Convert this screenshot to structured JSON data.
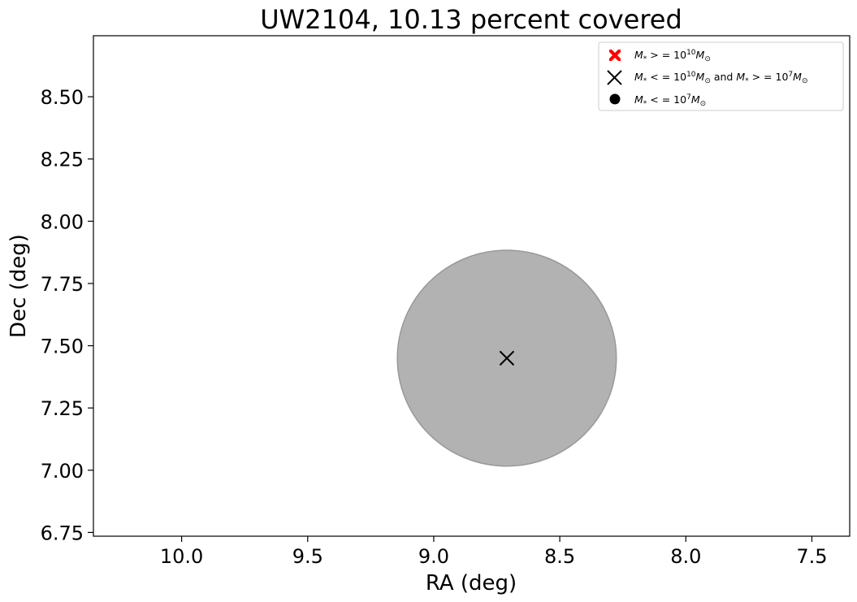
{
  "chart_data": {
    "type": "scatter",
    "title": "UW2104, 10.13 percent covered",
    "xlabel": "RA (deg)",
    "ylabel": "Dec (deg)",
    "xlim": [
      10.35,
      7.35
    ],
    "ylim": [
      6.735,
      8.745
    ],
    "x_inverted": true,
    "x_ticks": [
      10.0,
      9.5,
      9.0,
      8.5,
      8.0,
      7.5
    ],
    "x_tick_labels": [
      "10.0",
      "9.5",
      "9.0",
      "8.5",
      "8.0",
      "7.5"
    ],
    "y_ticks": [
      6.75,
      7.0,
      7.25,
      7.5,
      7.75,
      8.0,
      8.25,
      8.5
    ],
    "y_tick_labels": [
      "6.75",
      "7.00",
      "7.25",
      "7.50",
      "7.75",
      "8.00",
      "8.25",
      "8.50"
    ],
    "grid": false,
    "coverage_circle": {
      "center_ra": 8.71,
      "center_dec": 7.45,
      "radius_deg": 0.44,
      "color": "#b2b2b2",
      "edge_color": "#999999"
    },
    "series": [
      {
        "marker": "filled-x",
        "color": "#ff0000",
        "points": []
      },
      {
        "marker": "x",
        "color": "#000000",
        "points": [
          {
            "ra": 8.71,
            "dec": 7.45
          }
        ]
      },
      {
        "marker": "dot",
        "color": "#000000",
        "points": []
      }
    ],
    "legend": {
      "placement": "upper right",
      "entries": [
        {
          "id": "high-mass",
          "marker": "filled-x",
          "color": "#ff0000"
        },
        {
          "id": "mid-mass",
          "marker": "x",
          "color": "#000000"
        },
        {
          "id": "low-mass",
          "marker": "dot",
          "color": "#000000"
        }
      ]
    }
  }
}
